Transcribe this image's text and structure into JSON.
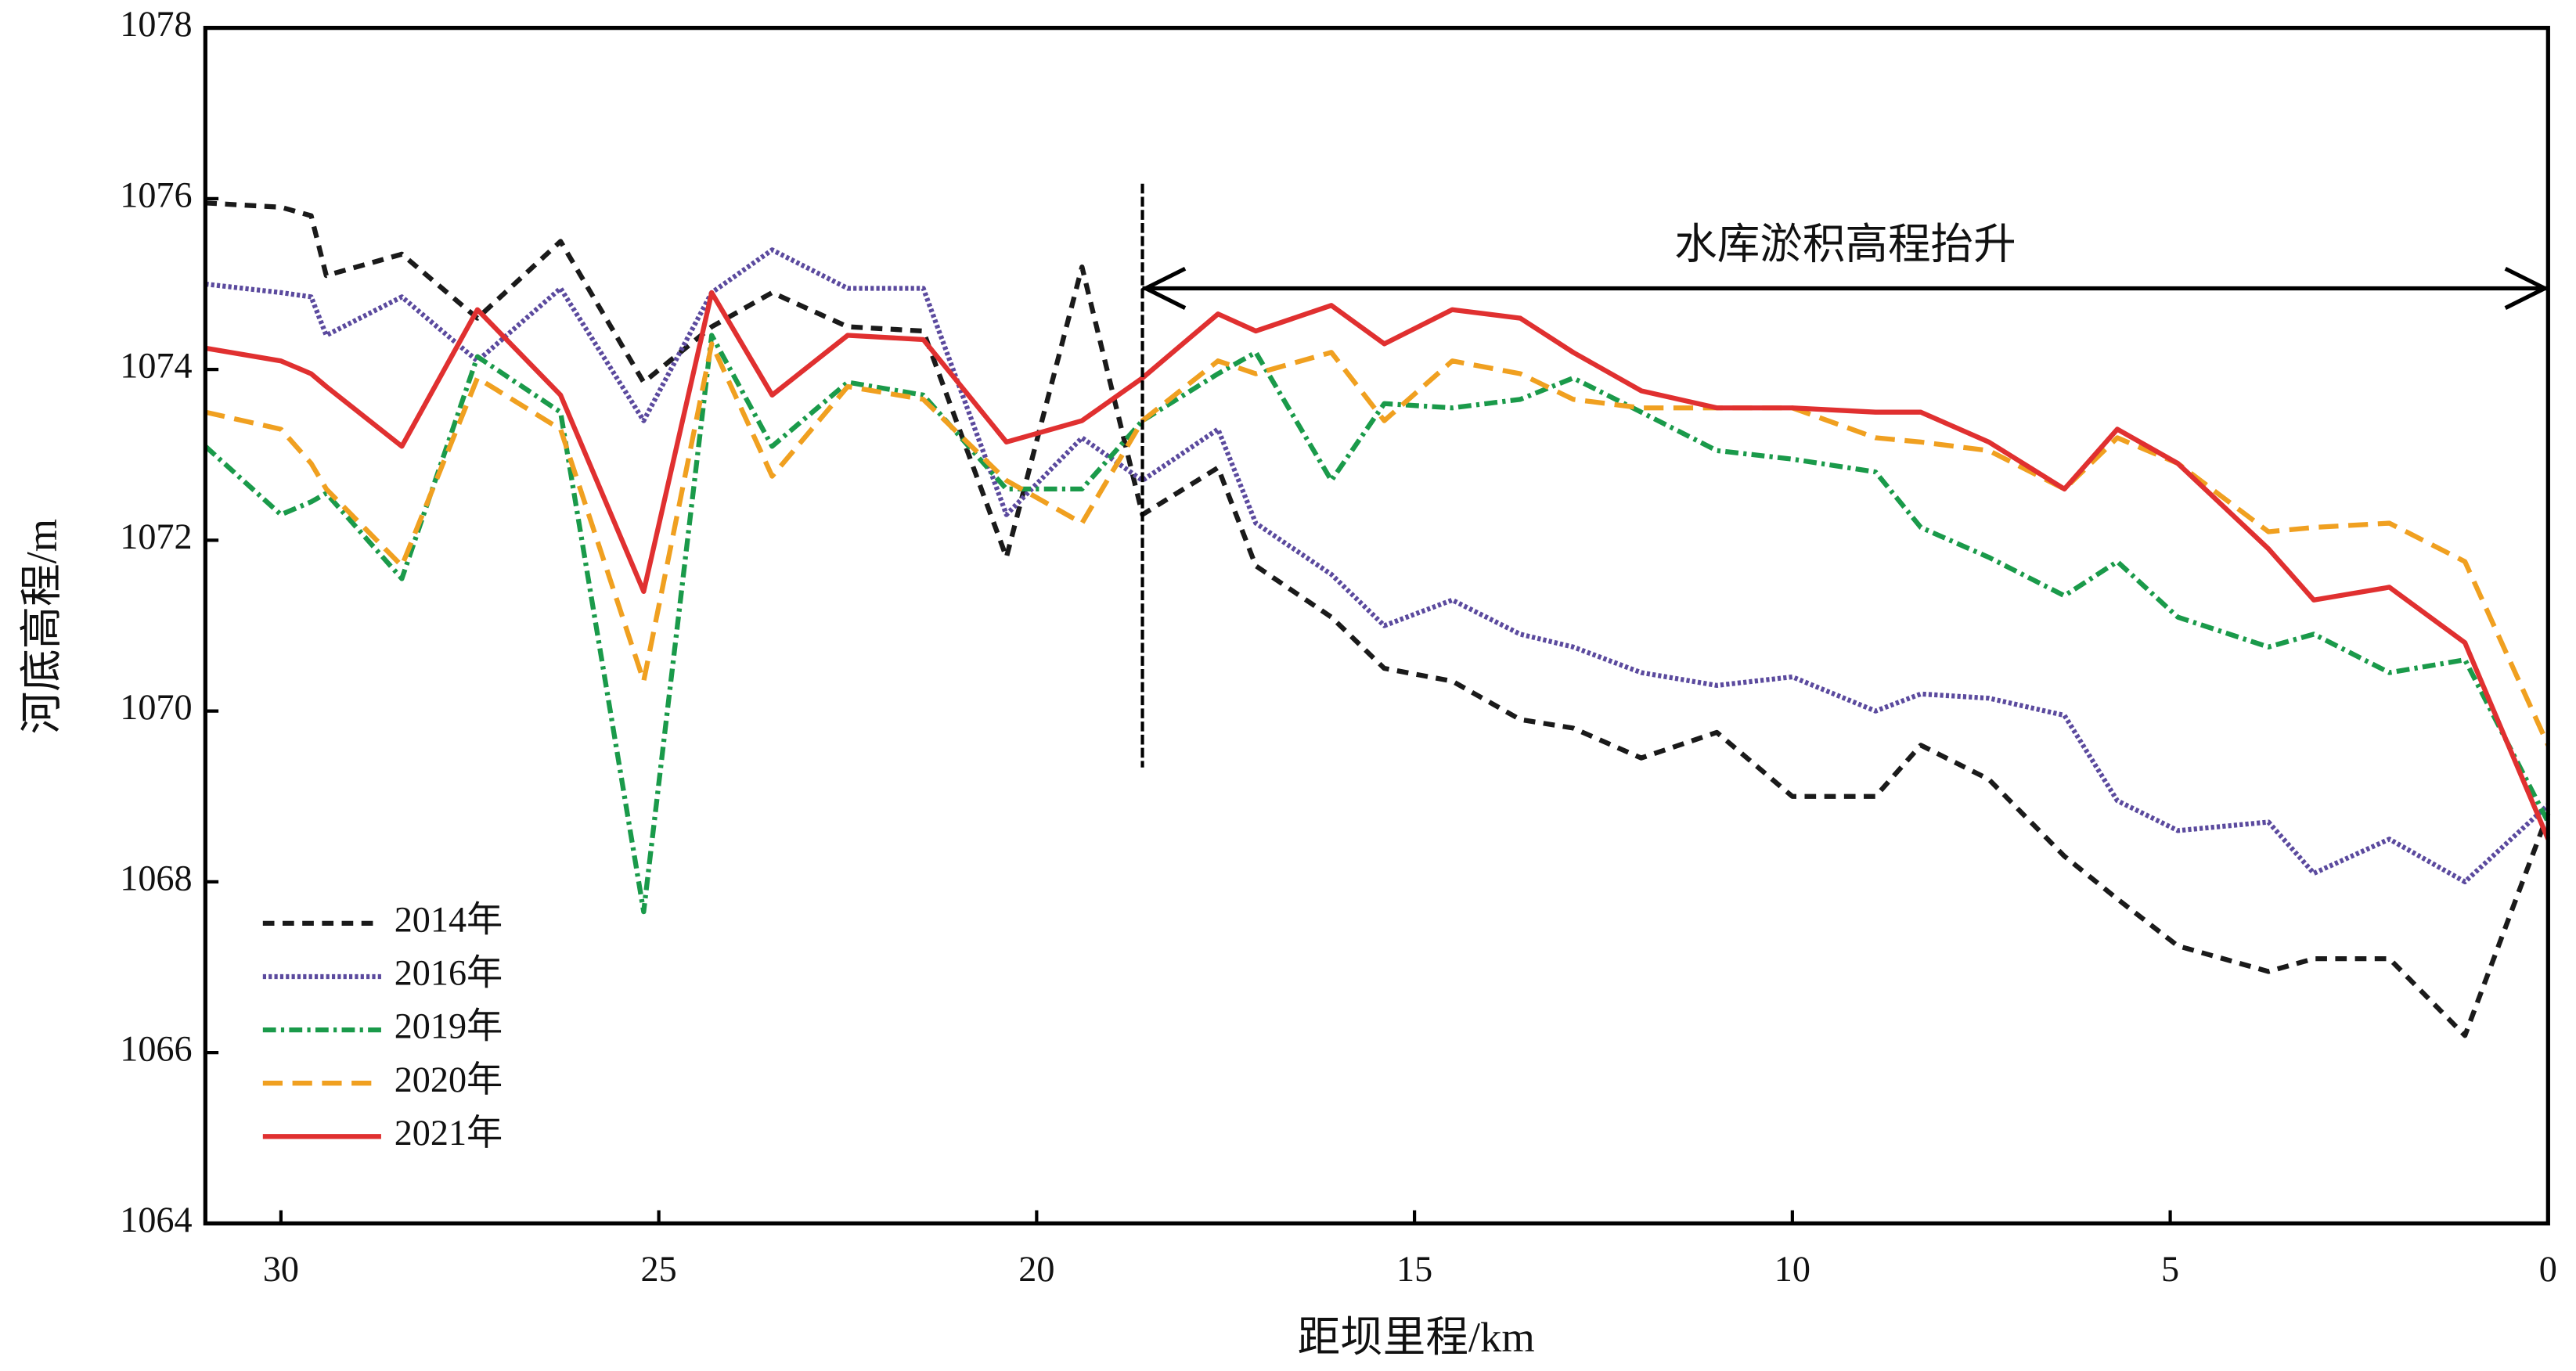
{
  "chart_data": {
    "type": "line",
    "x_label": "距坝里程/km",
    "y_label": "河底高程/m",
    "annotation": {
      "text": "水库淤积高程抬升",
      "x_start": 18.6,
      "x_end": 0,
      "y": 1074.95
    },
    "x": [
      31,
      30,
      29.6,
      29.4,
      28.4,
      27.4,
      26.3,
      25.2,
      24.3,
      23.5,
      22.5,
      21.5,
      20.4,
      19.4,
      18.6,
      17.6,
      17.1,
      16.1,
      15.4,
      14.5,
      13.6,
      12.9,
      12.0,
      11.0,
      10.0,
      8.9,
      8.3,
      7.4,
      6.4,
      5.7,
      4.9,
      3.7,
      3.1,
      2.1,
      1.1,
      0
    ],
    "series": [
      {
        "name": "2014年",
        "color": "#1a1a1a",
        "dash": "7,5",
        "values": [
          1075.95,
          1075.9,
          1075.8,
          1075.1,
          1075.35,
          1074.6,
          1075.5,
          1073.85,
          1074.5,
          1074.9,
          1074.5,
          1074.45,
          1071.8,
          1075.2,
          1072.3,
          1072.85,
          1071.7,
          1071.1,
          1070.5,
          1070.35,
          1069.9,
          1069.8,
          1069.45,
          1069.75,
          1069.0,
          1069.0,
          1069.6,
          1069.2,
          1068.3,
          1067.8,
          1067.25,
          1066.95,
          1067.1,
          1067.1,
          1066.2,
          1068.8
        ]
      },
      {
        "name": "2016年",
        "color": "#5b4a9e",
        "dash": "2,1.5",
        "values": [
          1075.0,
          1074.9,
          1074.85,
          1074.4,
          1074.85,
          1074.1,
          1074.95,
          1073.4,
          1074.9,
          1075.4,
          1074.95,
          1074.95,
          1072.3,
          1073.2,
          1072.7,
          1073.3,
          1072.2,
          1071.6,
          1071.0,
          1071.3,
          1070.9,
          1070.75,
          1070.45,
          1070.3,
          1070.4,
          1070.0,
          1070.2,
          1070.15,
          1069.95,
          1068.95,
          1068.6,
          1068.7,
          1068.1,
          1068.5,
          1068.0,
          1068.9
        ]
      },
      {
        "name": "2019年",
        "color": "#1a9a4a",
        "dash": "8,3,2,3",
        "values": [
          1073.1,
          1072.3,
          1072.45,
          1072.55,
          1071.55,
          1074.15,
          1073.5,
          1067.65,
          1074.4,
          1073.1,
          1073.85,
          1073.7,
          1072.6,
          1072.6,
          1073.4,
          1073.95,
          1074.2,
          1072.7,
          1073.6,
          1073.55,
          1073.65,
          1073.9,
          1073.5,
          1073.05,
          1072.95,
          1072.8,
          1072.15,
          1071.8,
          1071.35,
          1071.75,
          1071.1,
          1070.75,
          1070.9,
          1070.45,
          1070.6,
          1068.7
        ]
      },
      {
        "name": "2020年",
        "color": "#f0a020",
        "dash": "12,6",
        "values": [
          1073.5,
          1073.3,
          1072.9,
          1072.6,
          1071.7,
          1073.9,
          1073.3,
          1070.35,
          1074.3,
          1072.75,
          1073.8,
          1073.65,
          1072.7,
          1072.2,
          1073.4,
          1074.1,
          1073.95,
          1074.2,
          1073.4,
          1074.1,
          1073.95,
          1073.65,
          1073.55,
          1073.55,
          1073.55,
          1073.2,
          1073.15,
          1073.05,
          1072.6,
          1073.2,
          1072.9,
          1072.1,
          1072.15,
          1072.2,
          1071.75,
          1069.6
        ]
      },
      {
        "name": "2021年",
        "color": "#e03030",
        "dash": "none",
        "values": [
          1074.25,
          1074.1,
          1073.95,
          1073.8,
          1073.1,
          1074.7,
          1073.7,
          1071.4,
          1074.9,
          1073.7,
          1074.4,
          1074.35,
          1073.15,
          1073.4,
          1073.9,
          1074.65,
          1074.45,
          1074.75,
          1074.3,
          1074.7,
          1074.6,
          1074.2,
          1073.75,
          1073.55,
          1073.55,
          1073.5,
          1073.5,
          1073.15,
          1072.6,
          1073.3,
          1072.9,
          1071.9,
          1071.3,
          1071.45,
          1070.8,
          1068.5
        ]
      }
    ],
    "xlim": [
      31,
      0
    ],
    "xticks": [
      30,
      25,
      20,
      15,
      10,
      5,
      0
    ],
    "ylim": [
      1064,
      1078
    ],
    "yticks": [
      1064,
      1066,
      1068,
      1070,
      1072,
      1074,
      1076,
      1078
    ],
    "grid": false,
    "legend": "lower-left"
  }
}
